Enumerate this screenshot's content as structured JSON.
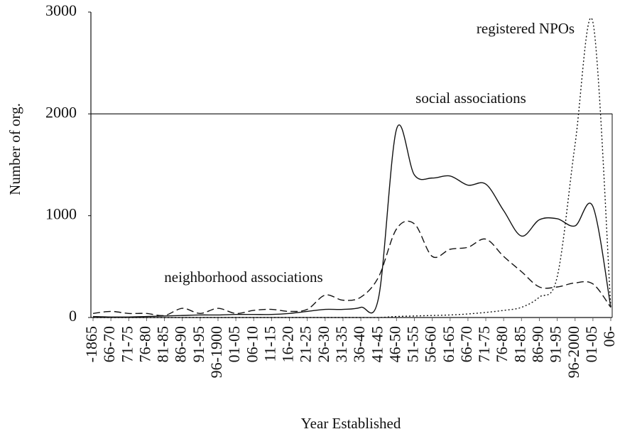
{
  "chart_data": {
    "type": "line",
    "x_label": "Year Established",
    "y_label": "Number of org.",
    "categories": [
      "-1865",
      "66-70",
      "71-75",
      "76-80",
      "81-85",
      "86-90",
      "91-95",
      "96-1900",
      "01-05",
      "06-10",
      "11-15",
      "16-20",
      "21-25",
      "26-30",
      "31-35",
      "36-40",
      "41-45",
      "46-50",
      "51-55",
      "56-60",
      "61-65",
      "66-70",
      "71-75",
      "76-80",
      "81-85",
      "86-90",
      "91-95",
      "96-2000",
      "01-05",
      "06-"
    ],
    "series": [
      {
        "name": "social associations",
        "color": "#111111",
        "style": "solid",
        "values": [
          10,
          5,
          5,
          10,
          15,
          20,
          25,
          25,
          30,
          30,
          30,
          40,
          60,
          80,
          80,
          100,
          200,
          1850,
          1400,
          1370,
          1390,
          1300,
          1310,
          1050,
          800,
          960,
          970,
          900,
          1090,
          100
        ]
      },
      {
        "name": "neighborhood associations",
        "color": "#111111",
        "style": "dashed",
        "values": [
          40,
          60,
          40,
          40,
          20,
          90,
          40,
          90,
          40,
          70,
          80,
          60,
          80,
          220,
          170,
          200,
          400,
          870,
          920,
          600,
          670,
          690,
          770,
          600,
          450,
          300,
          300,
          340,
          330,
          100
        ]
      },
      {
        "name": "registered NPOs",
        "color": "#111111",
        "style": "dotted",
        "values": [
          0,
          0,
          0,
          0,
          0,
          0,
          0,
          0,
          0,
          0,
          0,
          0,
          0,
          0,
          0,
          0,
          0,
          10,
          15,
          20,
          25,
          35,
          50,
          70,
          100,
          200,
          400,
          1700,
          2900,
          100
        ]
      }
    ],
    "reference_line": 2000,
    "ylim": [
      0,
      3000
    ],
    "yticks": [
      0,
      1000,
      2000,
      3000
    ]
  }
}
